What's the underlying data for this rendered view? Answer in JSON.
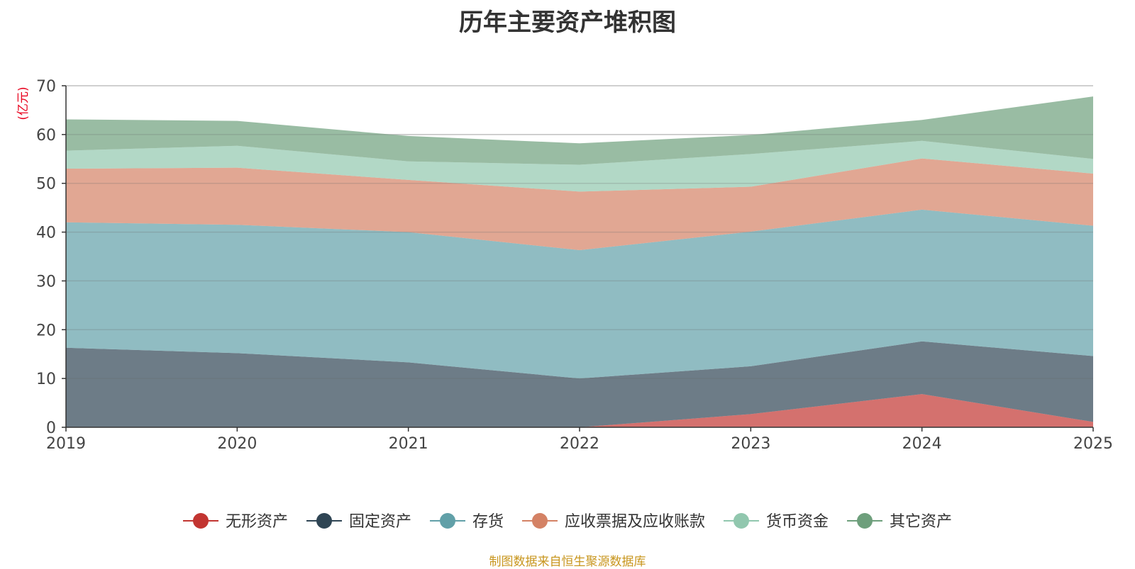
{
  "chart_data": {
    "type": "area",
    "stacked": true,
    "title": "历年主要资产堆积图",
    "ylabel": "(亿元)",
    "ylim": [
      0,
      70
    ],
    "yticks": [
      0,
      10,
      20,
      30,
      40,
      50,
      60,
      70
    ],
    "categories": [
      "2019",
      "2020",
      "2021",
      "2022",
      "2023",
      "2024",
      "2025"
    ],
    "grid": true,
    "legend_position": "bottom",
    "series": [
      {
        "name": "无形资产",
        "color": "#c23531",
        "values": [
          0,
          0,
          0,
          0,
          2.7,
          6.8,
          1.1
        ]
      },
      {
        "name": "固定资产",
        "color": "#2f4554",
        "values": [
          16.3,
          15.2,
          13.3,
          10.0,
          9.8,
          10.8,
          13.5
        ]
      },
      {
        "name": "存货",
        "color": "#61a0a8",
        "values": [
          25.7,
          26.3,
          26.7,
          26.3,
          27.6,
          27.0,
          26.7
        ]
      },
      {
        "name": "应收票据及应收账款",
        "color": "#d48265",
        "values": [
          11.0,
          11.7,
          10.7,
          12.0,
          9.2,
          10.5,
          10.7
        ]
      },
      {
        "name": "货币资金",
        "color": "#91c7ae",
        "values": [
          3.7,
          4.5,
          3.8,
          5.5,
          6.7,
          3.6,
          3.0
        ]
      },
      {
        "name": "其它资产",
        "color": "#6e9f7c",
        "values": [
          6.4,
          5.1,
          5.2,
          4.4,
          3.9,
          4.3,
          12.8
        ]
      }
    ],
    "source": "制图数据来自恒生聚源数据库"
  },
  "colors": {
    "axis": "#333333",
    "grid": "#cccccc",
    "unit_label": "#e8001c",
    "source_note": "#c8961e"
  }
}
